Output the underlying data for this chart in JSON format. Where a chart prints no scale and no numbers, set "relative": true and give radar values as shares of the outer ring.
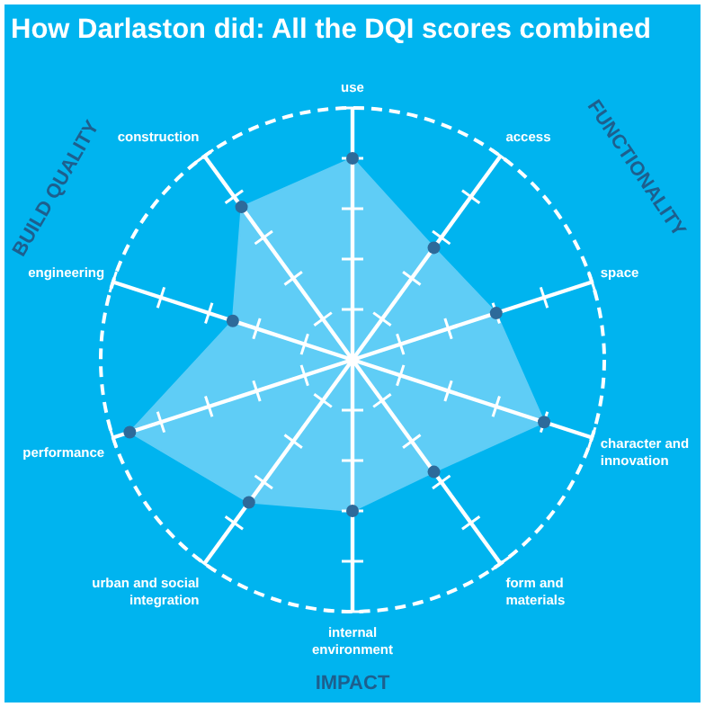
{
  "chart_data": {
    "type": "radar",
    "title": "How Darlaston did: All the DQI scores combined",
    "categories": [
      "use",
      "access",
      "space",
      "character and innovation",
      "form and materials",
      "internal environment",
      "urban and social integration",
      "performance",
      "engineering",
      "construction"
    ],
    "relative": true,
    "grid": true,
    "marker": "circle",
    "series": [
      {
        "color": "#5fcdf6",
        "values": [
          0.8,
          0.55,
          0.6,
          0.8,
          0.55,
          0.6,
          0.7,
          0.93,
          0.5,
          0.75
        ]
      }
    ],
    "annotations": [
      "BUILD QUALITY",
      "FUNCTIONALITY",
      "IMPACT"
    ]
  }
}
